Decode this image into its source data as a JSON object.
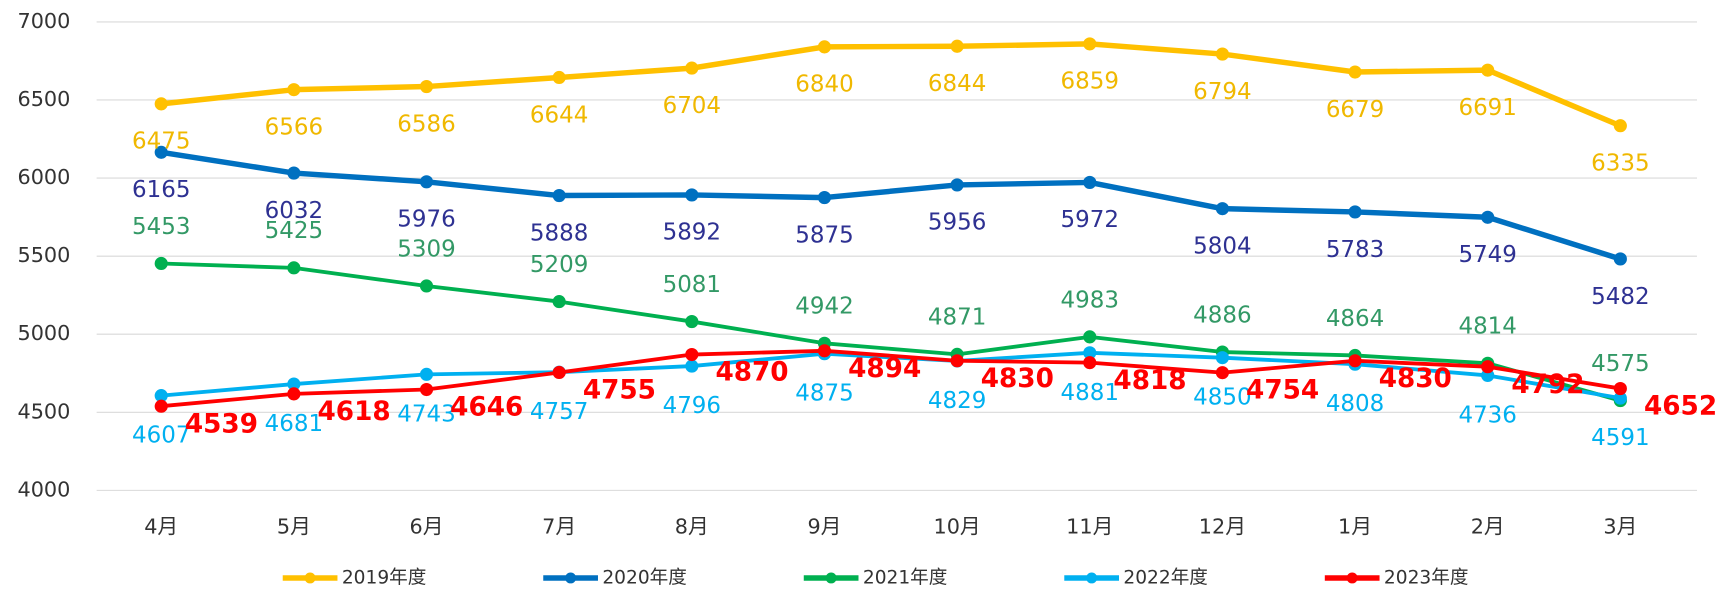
{
  "chart_data": {
    "type": "line",
    "categories": [
      "4月",
      "5月",
      "6月",
      "7月",
      "8月",
      "9月",
      "10月",
      "11月",
      "12月",
      "1月",
      "2月",
      "3月"
    ],
    "series": [
      {
        "name": "2019年度",
        "color": "#FFC000",
        "label_color": "#F0B800",
        "values": [
          6475,
          6566,
          6586,
          6644,
          6704,
          6840,
          6844,
          6859,
          6794,
          6679,
          6691,
          6335
        ]
      },
      {
        "name": "2020年度",
        "color": "#0070C0",
        "label_color": "#2E3192",
        "values": [
          6165,
          6032,
          5976,
          5888,
          5892,
          5875,
          5956,
          5972,
          5804,
          5783,
          5749,
          5482
        ]
      },
      {
        "name": "2021年度",
        "color": "#00B050",
        "label_color": "#339966",
        "values": [
          5453,
          5425,
          5309,
          5209,
          5081,
          4942,
          4871,
          4983,
          4886,
          4864,
          4814,
          4575
        ]
      },
      {
        "name": "2022年度",
        "color": "#00B0F0",
        "label_color": "#00B0F0",
        "values": [
          4607,
          4681,
          4743,
          4757,
          4796,
          4875,
          4829,
          4881,
          4850,
          4808,
          4736,
          4591
        ]
      },
      {
        "name": "2023年度",
        "color": "#FF0000",
        "label_color": "#FF0000",
        "values": [
          4539,
          4618,
          4646,
          4755,
          4870,
          4894,
          4830,
          4818,
          4754,
          4830,
          4792,
          4652
        ]
      }
    ],
    "ylim": [
      4000,
      7000
    ],
    "yticks": [
      4000,
      4500,
      5000,
      5500,
      6000,
      6500,
      7000
    ],
    "grid": true,
    "legend": "bottom"
  }
}
